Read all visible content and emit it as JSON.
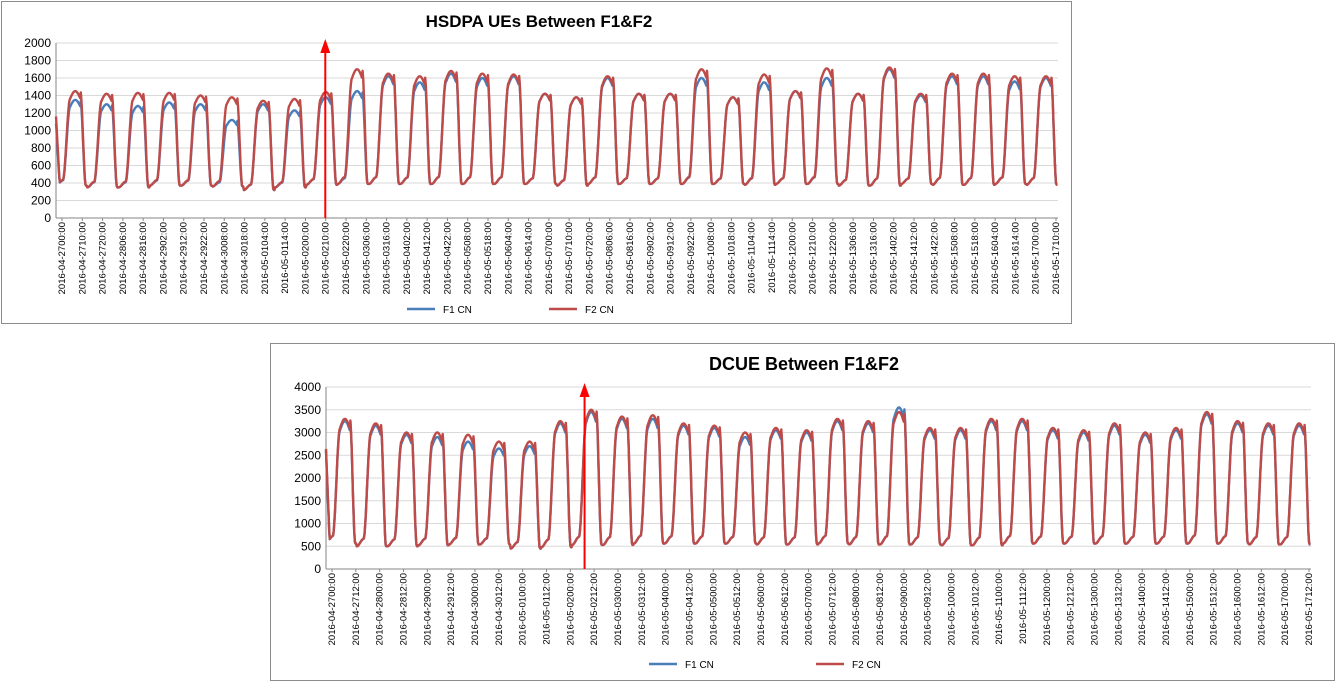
{
  "colors": {
    "f1": "#4a7ebb",
    "f2": "#be4b48",
    "marker": "#ff0000",
    "grid": "#d9d9d9",
    "axis": "#868686"
  },
  "chart_data": [
    {
      "type": "line",
      "title": "HSDPA UEs Between F1&F2",
      "ylim": [
        0,
        2000
      ],
      "yticks": [
        0,
        200,
        400,
        600,
        800,
        1000,
        1200,
        1400,
        1600,
        1800,
        2000
      ],
      "grid": true,
      "legend_position": "bottom",
      "xtick_labels": [
        "2016-04-2700:00",
        "2016-04-2710:00",
        "2016-04-2720:00",
        "2016-04-2806:00",
        "2016-04-2816:00",
        "2016-04-2902:00",
        "2016-04-2912:00",
        "2016-04-2922:00",
        "2016-04-3008:00",
        "2016-04-3018:00",
        "2016-05-0104:00",
        "2016-05-0114:00",
        "2016-05-0200:00",
        "2016-05-0210:00",
        "2016-05-0220:00",
        "2016-05-0306:00",
        "2016-05-0316:00",
        "2016-05-0402:00",
        "2016-05-0412:00",
        "2016-05-0422:00",
        "2016-05-0508:00",
        "2016-05-0518:00",
        "2016-05-0604:00",
        "2016-05-0614:00",
        "2016-05-0700:00",
        "2016-05-0710:00",
        "2016-05-0720:00",
        "2016-05-0806:00",
        "2016-05-0816:00",
        "2016-05-0902:00",
        "2016-05-0912:00",
        "2016-05-0922:00",
        "2016-05-1008:00",
        "2016-05-1018:00",
        "2016-05-1104:00",
        "2016-05-1114:00",
        "2016-05-1200:00",
        "2016-05-1210:00",
        "2016-05-1220:00",
        "2016-05-1306:00",
        "2016-05-1316:00",
        "2016-05-1402:00",
        "2016-05-1412:00",
        "2016-05-1422:00",
        "2016-05-1508:00",
        "2016-05-1518:00",
        "2016-05-1604:00",
        "2016-05-1614:00",
        "2016-05-1700:00",
        "2016-05-1710:00"
      ],
      "marker_at_day": 8.6,
      "series": [
        {
          "name": "F1 CN",
          "daily_min": [
            370,
            350,
            350,
            370,
            370,
            360,
            320,
            350,
            380,
            390,
            390,
            390,
            390,
            390,
            390,
            390,
            370,
            390,
            390,
            390,
            390,
            390,
            380,
            390,
            390,
            370,
            370,
            390,
            380,
            380,
            390,
            380
          ],
          "daily_max": [
            1350,
            1300,
            1280,
            1320,
            1300,
            1120,
            1300,
            1230,
            1380,
            1450,
            1620,
            1550,
            1650,
            1600,
            1620,
            1420,
            1380,
            1600,
            1420,
            1420,
            1600,
            1380,
            1550,
            1450,
            1600,
            1420,
            1700,
            1400,
            1620,
            1620,
            1560,
            1600
          ]
        },
        {
          "name": "F2 CN",
          "daily_min": [
            370,
            350,
            350,
            370,
            370,
            360,
            320,
            350,
            380,
            390,
            390,
            390,
            390,
            390,
            390,
            390,
            370,
            390,
            390,
            390,
            390,
            390,
            380,
            390,
            390,
            370,
            370,
            390,
            380,
            380,
            390,
            380
          ],
          "daily_max": [
            1450,
            1420,
            1430,
            1430,
            1400,
            1380,
            1340,
            1360,
            1440,
            1700,
            1650,
            1620,
            1680,
            1650,
            1640,
            1420,
            1380,
            1620,
            1420,
            1420,
            1700,
            1380,
            1640,
            1450,
            1710,
            1420,
            1720,
            1420,
            1650,
            1650,
            1620,
            1620
          ]
        }
      ]
    },
    {
      "type": "line",
      "title": "DCUE Between F1&F2",
      "ylim": [
        0,
        4000
      ],
      "yticks": [
        0,
        500,
        1000,
        1500,
        2000,
        2500,
        3000,
        3500,
        4000
      ],
      "grid": true,
      "legend_position": "bottom",
      "xtick_labels": [
        "2016-04-2700:00",
        "2016-04-2712:00",
        "2016-04-2800:00",
        "2016-04-2812:00",
        "2016-04-2900:00",
        "2016-04-2912:00",
        "2016-04-3000:00",
        "2016-04-3012:00",
        "2016-05-0100:00",
        "2016-05-0112:00",
        "2016-05-0200:00",
        "2016-05-0212:00",
        "2016-05-0300:00",
        "2016-05-0312:00",
        "2016-05-0400:00",
        "2016-05-0412:00",
        "2016-05-0500:00",
        "2016-05-0512:00",
        "2016-05-0600:00",
        "2016-05-0612:00",
        "2016-05-0700:00",
        "2016-05-0712:00",
        "2016-05-0800:00",
        "2016-05-0812:00",
        "2016-05-0900:00",
        "2016-05-0912:00",
        "2016-05-1000:00",
        "2016-05-1012:00",
        "2016-05-1100:00",
        "2016-05-1112:00",
        "2016-05-1200:00",
        "2016-05-1212:00",
        "2016-05-1300:00",
        "2016-05-1312:00",
        "2016-05-1400:00",
        "2016-05-1412:00",
        "2016-05-1500:00",
        "2016-05-1512:00",
        "2016-05-1600:00",
        "2016-05-1612:00",
        "2016-05-1700:00",
        "2016-05-1712:00"
      ],
      "marker_at_day": 8.4,
      "series": [
        {
          "name": "F1 CN",
          "daily_min": [
            560,
            500,
            500,
            520,
            540,
            540,
            450,
            480,
            530,
            530,
            560,
            560,
            560,
            560,
            540,
            540,
            560,
            540,
            540,
            540,
            520,
            520,
            560,
            560,
            560,
            560,
            560,
            560,
            560,
            560,
            540,
            540
          ],
          "daily_max": [
            3250,
            3150,
            2950,
            2900,
            2800,
            2650,
            2700,
            3200,
            3450,
            3300,
            3300,
            3150,
            3100,
            2900,
            3050,
            3000,
            3250,
            3200,
            3550,
            3050,
            3050,
            3250,
            3250,
            3050,
            3000,
            3150,
            2950,
            3050,
            3400,
            3200,
            3150,
            3150
          ]
        },
        {
          "name": "F2 CN",
          "daily_min": [
            560,
            500,
            500,
            520,
            540,
            540,
            450,
            480,
            530,
            530,
            560,
            560,
            560,
            560,
            540,
            540,
            560,
            540,
            540,
            540,
            520,
            520,
            560,
            560,
            560,
            560,
            560,
            560,
            560,
            560,
            540,
            540
          ],
          "daily_max": [
            3300,
            3200,
            3000,
            3000,
            2950,
            2800,
            2800,
            3250,
            3500,
            3350,
            3380,
            3200,
            3150,
            3000,
            3100,
            3050,
            3300,
            3250,
            3450,
            3100,
            3100,
            3300,
            3300,
            3100,
            3050,
            3200,
            3000,
            3100,
            3450,
            3250,
            3200,
            3200
          ]
        }
      ]
    }
  ]
}
